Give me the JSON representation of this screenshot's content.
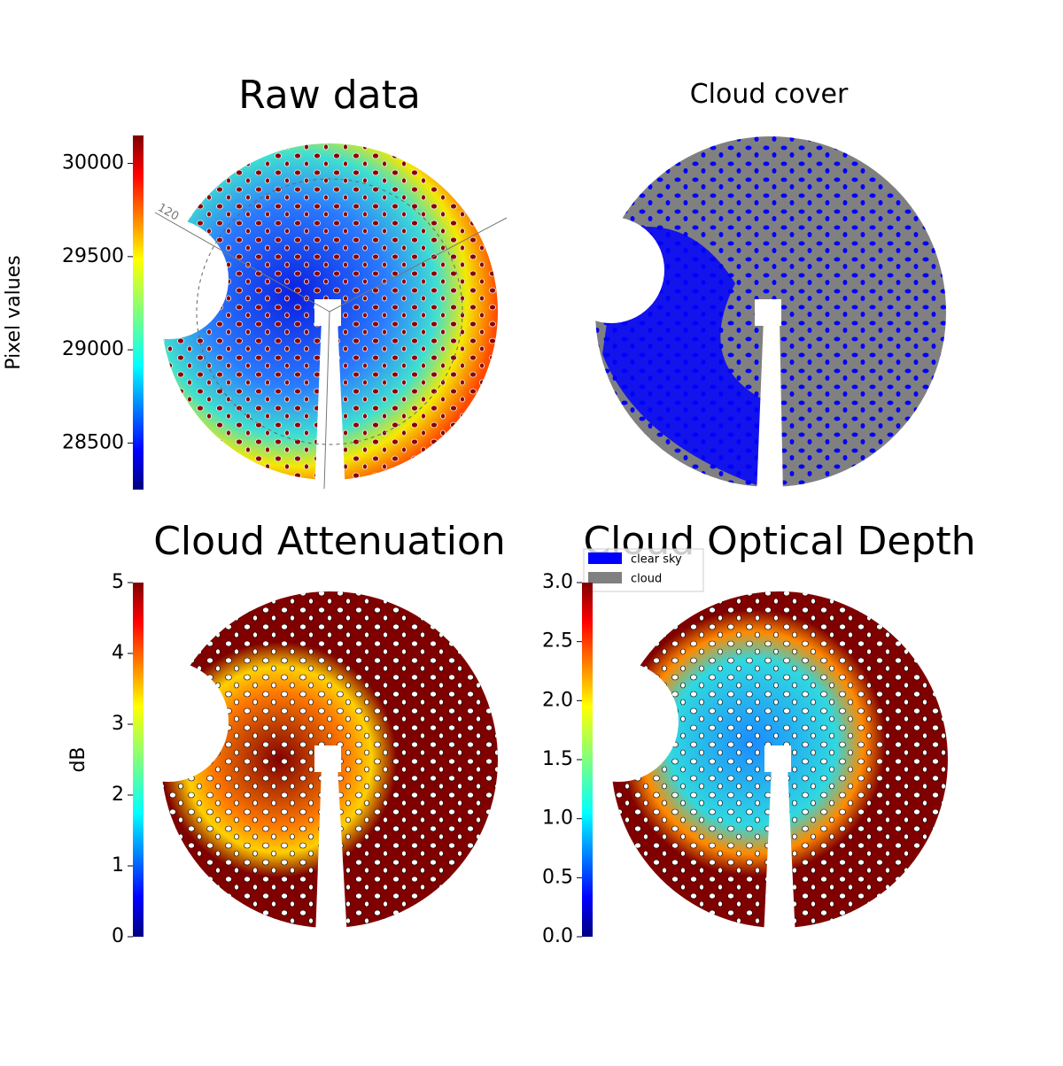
{
  "chart_data": [
    {
      "type": "image",
      "title": "Raw data",
      "colormap": "jet",
      "colorbar_label": "Pixel values",
      "ylim": [
        28250,
        30150
      ],
      "yticks": [
        28500,
        29000,
        29500,
        30000
      ],
      "annotations": [
        "120"
      ]
    },
    {
      "type": "image",
      "title": "Cloud cover",
      "series": [
        {
          "name": "clear sky",
          "color": "#0000ff"
        },
        {
          "name": "cloud",
          "color": "#808080"
        }
      ]
    },
    {
      "type": "image",
      "title": "Cloud Attenuation",
      "colormap": "jet",
      "colorbar_label": "dB",
      "ylim": [
        0,
        5
      ],
      "yticks": [
        0,
        1,
        2,
        3,
        4,
        5
      ]
    },
    {
      "type": "image",
      "title": "Cloud Optical Depth",
      "colormap": "jet",
      "ylim": [
        0,
        3
      ],
      "yticks": [
        {
          "value": 0,
          "label": "0.0"
        },
        0.5,
        {
          "value": 1,
          "label": "1.0"
        },
        1.5,
        {
          "value": 2,
          "label": "2.0"
        },
        2.5,
        {
          "value": 3,
          "label": "3.0"
        }
      ]
    }
  ]
}
